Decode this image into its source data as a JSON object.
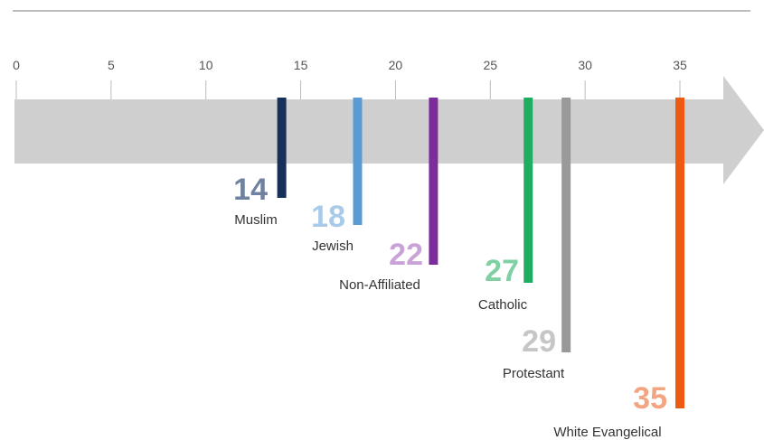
{
  "chart_data": {
    "type": "bar",
    "title": "",
    "xlabel": "",
    "ylabel": "",
    "xlim": [
      0,
      35
    ],
    "ticks": [
      0,
      5,
      10,
      15,
      20,
      25,
      30,
      35
    ],
    "grid": false,
    "legend": "none",
    "categories": [
      "Muslim",
      "Jewish",
      "Non-Affiliated",
      "Catholic",
      "Protestant",
      "White Evangelical"
    ],
    "values": [
      14,
      18,
      22,
      27,
      29,
      35
    ],
    "bar_colors": [
      "#15305a",
      "#5b9bd5",
      "#7b2d9b",
      "#1fae5f",
      "#999999",
      "#ee5a12"
    ],
    "label_colors": [
      "#6f829f",
      "#a9cbe9",
      "#c9a3d8",
      "#7fd1a3",
      "#c6c6c6",
      "#f3a582"
    ],
    "arrow_color": "#cfcfcf",
    "axis_color": "#bbbbbb"
  }
}
